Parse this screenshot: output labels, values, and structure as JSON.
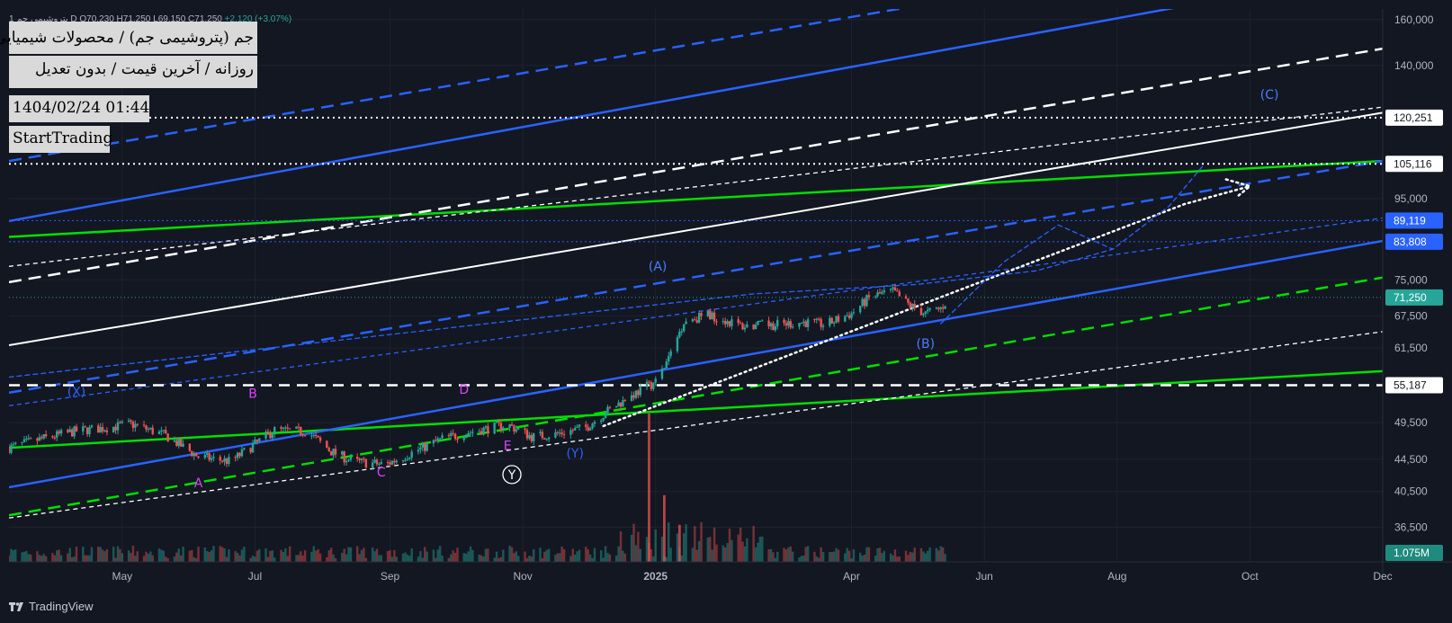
{
  "header": {
    "symbol_short": "پتروشیمی جم 1",
    "ohlc_prefix": "D  O70,230  H71,250  L69,150  C71,250",
    "change": "+2,120 (+3.07%)"
  },
  "overlay": {
    "title": "جم (پتروشیمی جم) / محصولات شیمیایی",
    "subtitle": "روزانه / آخرین قیمت / بدون تعدیل",
    "datetime": "1404/02/24 01:44",
    "brand": "StartTrading"
  },
  "footer": {
    "logo_text": "TradingView"
  },
  "colors": {
    "background": "#131722",
    "grid": "#1e222d",
    "up": "#26a69a",
    "down": "#ef5350",
    "blue": "#2962ff",
    "green": "#00e000",
    "white": "#ffffff",
    "magenta": "#e040fb",
    "label_blue": "#4a7dff"
  },
  "chart_data": {
    "type": "candlestick",
    "y_scale": "log",
    "ylim": [
      33000,
      165000
    ],
    "x_range": [
      "2024-03-10",
      "2025-12-01"
    ],
    "price_ticks": [
      "160,000",
      "140,000",
      "95,000",
      "75,000",
      "67,500",
      "61,500",
      "49,500",
      "44,500",
      "40,500",
      "36,500"
    ],
    "price_tick_values": [
      160000,
      140000,
      95000,
      75000,
      67500,
      61500,
      49500,
      44500,
      40500,
      36500
    ],
    "time_ticks": [
      {
        "label": "May",
        "date": "2024-05-01",
        "bold": false
      },
      {
        "label": "Jul",
        "date": "2024-07-01",
        "bold": false
      },
      {
        "label": "Sep",
        "date": "2024-09-01",
        "bold": false
      },
      {
        "label": "Nov",
        "date": "2024-11-01",
        "bold": false
      },
      {
        "label": "2025",
        "date": "2025-01-01",
        "bold": true
      },
      {
        "label": "Apr",
        "date": "2025-04-01",
        "bold": false
      },
      {
        "label": "Jun",
        "date": "2025-06-01",
        "bold": false
      },
      {
        "label": "Aug",
        "date": "2025-08-01",
        "bold": false
      },
      {
        "label": "Oct",
        "date": "2025-10-01",
        "bold": false
      },
      {
        "label": "Dec",
        "date": "2025-12-01",
        "bold": false
      }
    ],
    "price_badges": [
      {
        "label": "120,251",
        "value": 120251,
        "kind": "white",
        "line": "dotted-white"
      },
      {
        "label": "105,116",
        "value": 105116,
        "kind": "white",
        "line": "dotted-white"
      },
      {
        "label": "89,119",
        "value": 89119,
        "kind": "blue",
        "line": "dotted-blue"
      },
      {
        "label": "83,808",
        "value": 83808,
        "kind": "blue",
        "line": "dotted-blue"
      },
      {
        "label": "71,250",
        "value": 71250,
        "kind": "green",
        "line": "dotted-teal"
      },
      {
        "label": "55,187",
        "value": 55187,
        "kind": "white",
        "line": "dashed-white"
      }
    ],
    "volume_badge": "1.075M",
    "trendlines": [
      {
        "color": "#00e000",
        "style": "solid",
        "width": 2.5,
        "p1": [
          "2024-03-10",
          46000
        ],
        "p2": [
          "2025-12-01",
          57500
        ]
      },
      {
        "color": "#00e000",
        "style": "solid",
        "width": 2.5,
        "p1": [
          "2024-03-10",
          85000
        ],
        "p2": [
          "2025-12-01",
          106000
        ]
      },
      {
        "color": "#00e000",
        "style": "dashed",
        "width": 2.5,
        "p1": [
          "2024-03-10",
          37800
        ],
        "p2": [
          "2025-12-01",
          75500
        ]
      },
      {
        "color": "#2962ff",
        "style": "solid",
        "width": 2.5,
        "p1": [
          "2024-03-10",
          41000
        ],
        "p2": [
          "2025-12-01",
          84000
        ]
      },
      {
        "color": "#2962ff",
        "style": "solid",
        "width": 2.5,
        "p1": [
          "2024-03-10",
          89000
        ],
        "p2": [
          "2025-12-01",
          185000
        ]
      },
      {
        "color": "#2962ff",
        "style": "dashed",
        "width": 2.5,
        "p1": [
          "2024-03-10",
          54000
        ],
        "p2": [
          "2025-12-01",
          106000
        ]
      },
      {
        "color": "#2962ff",
        "style": "dashed",
        "width": 2.5,
        "p1": [
          "2024-03-10",
          106000
        ],
        "p2": [
          "2025-12-01",
          210000
        ]
      },
      {
        "color": "#2962ff",
        "style": "dashed",
        "width": 1.3,
        "p1": [
          "2024-03-10",
          52000
        ],
        "p2": [
          "2025-12-01",
          89800
        ]
      },
      {
        "color": "#ffffff",
        "style": "solid",
        "width": 2,
        "p1": [
          "2024-03-10",
          62000
        ],
        "p2": [
          "2025-12-01",
          122000
        ]
      },
      {
        "color": "#ffffff",
        "style": "dashed",
        "width": 2.5,
        "p1": [
          "2024-03-10",
          74500
        ],
        "p2": [
          "2025-12-01",
          147000
        ]
      },
      {
        "color": "#ffffff",
        "style": "dashed",
        "width": 1.3,
        "p1": [
          "2024-03-10",
          78000
        ],
        "p2": [
          "2025-12-01",
          124000
        ]
      },
      {
        "color": "#ffffff",
        "style": "dashed",
        "width": 1.3,
        "p1": [
          "2024-03-10",
          37500
        ],
        "p2": [
          "2025-12-01",
          64500
        ]
      }
    ],
    "paths": [
      {
        "color": "#ffffff",
        "style": "dotted",
        "width": 2.5,
        "points": [
          [
            "2024-12-08",
            49000
          ],
          [
            "2025-09-01",
            93500
          ],
          [
            "2025-10-01",
            98500
          ]
        ]
      },
      {
        "color": "#ffffff",
        "style": "dotted",
        "width": 2.5,
        "points": [
          [
            "2025-09-20",
            100500
          ],
          [
            "2025-10-01",
            98500
          ],
          [
            "2025-09-25",
            95500
          ]
        ]
      },
      {
        "color": "#2962ff",
        "style": "dashed",
        "width": 1.3,
        "points": [
          [
            "2025-05-12",
            66000
          ],
          [
            "2025-06-10",
            79000
          ],
          [
            "2025-07-05",
            88000
          ],
          [
            "2025-07-30",
            82000
          ],
          [
            "2025-08-25",
            93000
          ],
          [
            "2025-09-10",
            105000
          ]
        ]
      },
      {
        "color": "#2962ff",
        "style": "dashed",
        "width": 1.3,
        "points": [
          [
            "2024-03-10",
            56500
          ],
          [
            "2025-02-15",
            72000
          ],
          [
            "2025-05-01",
            74000
          ],
          [
            "2025-06-25",
            77000
          ],
          [
            "2025-07-30",
            82000
          ]
        ]
      }
    ],
    "wave_labels": [
      {
        "text": "(X)",
        "date": "2024-04-10",
        "price": 53500,
        "color": "#2962ff"
      },
      {
        "text": "B",
        "date": "2024-06-30",
        "price": 53200,
        "color": "#e040fb"
      },
      {
        "text": "D",
        "date": "2024-10-05",
        "price": 53800,
        "color": "#e040fb"
      },
      {
        "text": "A",
        "date": "2024-06-05",
        "price": 41000,
        "color": "#e040fb"
      },
      {
        "text": "C",
        "date": "2024-08-28",
        "price": 42300,
        "color": "#e040fb"
      },
      {
        "text": "E",
        "date": "2024-10-25",
        "price": 45700,
        "color": "#e040fb"
      },
      {
        "text": "(Y)",
        "date": "2024-11-25",
        "price": 44700,
        "color": "#2962ff"
      },
      {
        "text": "Y",
        "date": "2024-10-27",
        "price": 42000,
        "color": "#ffffff",
        "circled": true
      },
      {
        "text": "(A)",
        "date": "2025-01-02",
        "price": 77000,
        "color": "#4a7dff"
      },
      {
        "text": "(B)",
        "date": "2025-05-05",
        "price": 61500,
        "color": "#4a7dff"
      },
      {
        "text": "(C)",
        "date": "2025-10-10",
        "price": 127000,
        "color": "#4a7dff"
      }
    ],
    "price_anchors": [
      [
        "2024-03-10",
        46000
      ],
      [
        "2024-03-25",
        47200
      ],
      [
        "2024-04-10",
        48300
      ],
      [
        "2024-04-25",
        48800
      ],
      [
        "2024-05-05",
        49300
      ],
      [
        "2024-05-20",
        47800
      ],
      [
        "2024-06-05",
        44800
      ],
      [
        "2024-06-20",
        44200
      ],
      [
        "2024-07-01",
        46500
      ],
      [
        "2024-07-10",
        48400
      ],
      [
        "2024-07-25",
        48200
      ],
      [
        "2024-08-05",
        45500
      ],
      [
        "2024-08-15",
        44200
      ],
      [
        "2024-08-30",
        43800
      ],
      [
        "2024-09-10",
        45200
      ],
      [
        "2024-09-25",
        47200
      ],
      [
        "2024-10-10",
        48300
      ],
      [
        "2024-10-25",
        49200
      ],
      [
        "2024-11-05",
        47500
      ],
      [
        "2024-11-15",
        47800
      ],
      [
        "2024-11-30",
        48800
      ],
      [
        "2024-12-10",
        51200
      ],
      [
        "2024-12-22",
        53800
      ],
      [
        "2025-01-02",
        56000
      ],
      [
        "2025-01-08",
        60500
      ],
      [
        "2025-01-14",
        66500
      ],
      [
        "2025-01-25",
        67800
      ],
      [
        "2025-02-10",
        65500
      ],
      [
        "2025-02-25",
        65800
      ],
      [
        "2025-03-10",
        66300
      ],
      [
        "2025-03-20",
        65800
      ],
      [
        "2025-04-01",
        68000
      ],
      [
        "2025-04-10",
        71500
      ],
      [
        "2025-04-20",
        72500
      ],
      [
        "2025-04-28",
        69500
      ],
      [
        "2025-05-05",
        68000
      ],
      [
        "2025-05-12",
        69000
      ],
      [
        "2025-05-16",
        71250
      ]
    ],
    "volume_spikes": [
      [
        "2024-12-29",
        1.0
      ],
      [
        "2025-01-05",
        0.45
      ],
      [
        "2025-01-12",
        0.25
      ]
    ]
  }
}
